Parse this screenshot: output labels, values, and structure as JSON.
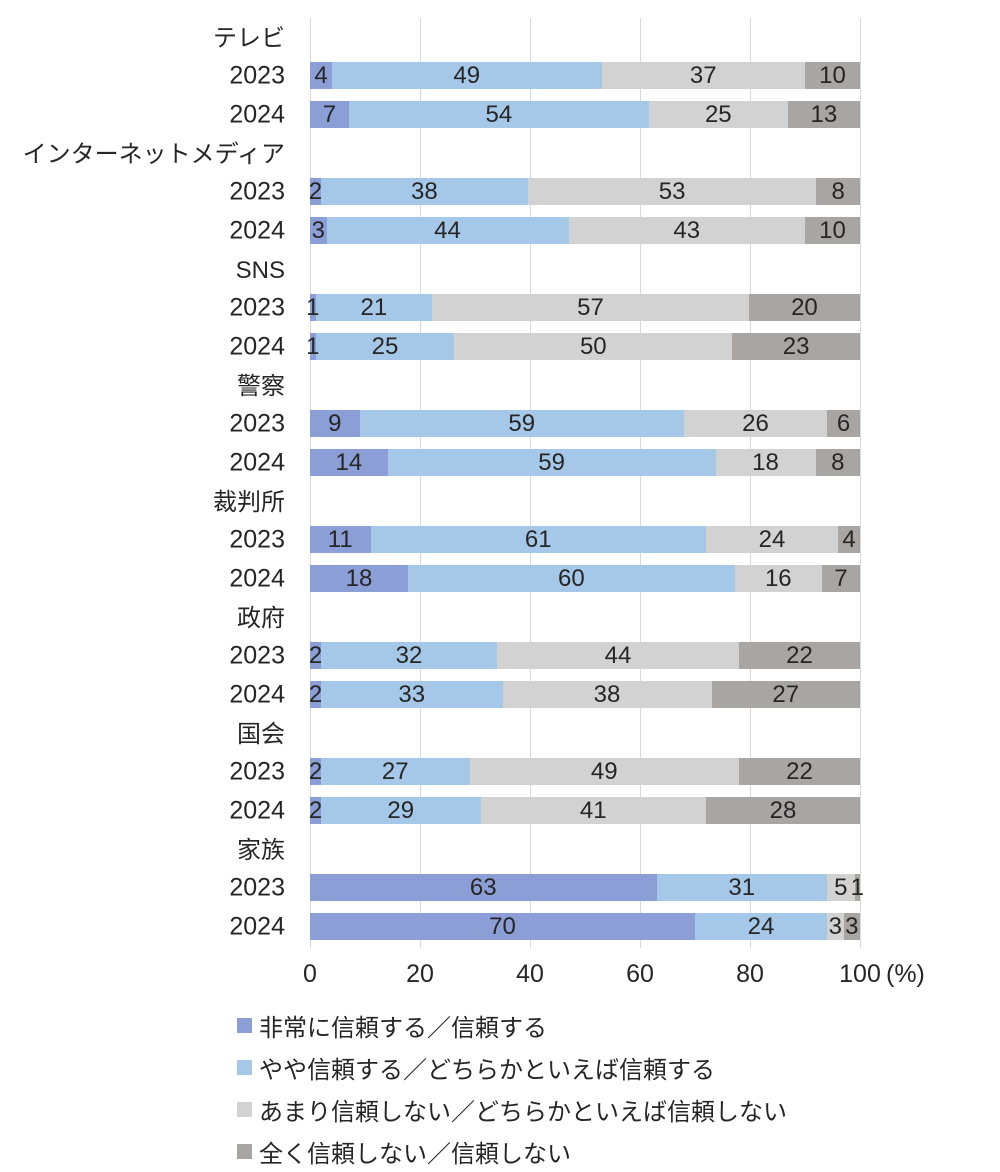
{
  "chart_data": {
    "type": "bar",
    "subtype": "100-percent-stacked-horizontal",
    "unit": "(%)",
    "x_ticks": [
      0,
      20,
      40,
      60,
      80,
      100
    ],
    "xlim": [
      0,
      100
    ],
    "grid": "vertical-lines",
    "legend_position": "bottom-left",
    "series_names": [
      "非常に信頼する／信頼する",
      "やや信頼する／どちらかといえば信頼する",
      "あまり信頼しない／どちらかといえば信頼しない",
      "全く信頼しない／信頼しない"
    ],
    "series_colors": [
      "#8b9fd6",
      "#a5c8e9",
      "#d2d2d2",
      "#a9a5a3"
    ],
    "groups": [
      {
        "label": "テレビ",
        "rows": [
          {
            "year": "2023",
            "values": [
              4,
              49,
              37,
              10
            ]
          },
          {
            "year": "2024",
            "values": [
              7,
              54,
              25,
              13
            ]
          }
        ]
      },
      {
        "label": "インターネットメディア",
        "rows": [
          {
            "year": "2023",
            "values": [
              2,
              38,
              53,
              8
            ]
          },
          {
            "year": "2024",
            "values": [
              3,
              44,
              43,
              10
            ]
          }
        ]
      },
      {
        "label": "SNS",
        "rows": [
          {
            "year": "2023",
            "values": [
              1,
              21,
              57,
              20
            ]
          },
          {
            "year": "2024",
            "values": [
              1,
              25,
              50,
              23
            ]
          }
        ]
      },
      {
        "label": "警察",
        "rows": [
          {
            "year": "2023",
            "values": [
              9,
              59,
              26,
              6
            ]
          },
          {
            "year": "2024",
            "values": [
              14,
              59,
              18,
              8
            ]
          }
        ]
      },
      {
        "label": "裁判所",
        "rows": [
          {
            "year": "2023",
            "values": [
              11,
              61,
              24,
              4
            ]
          },
          {
            "year": "2024",
            "values": [
              18,
              60,
              16,
              7
            ]
          }
        ]
      },
      {
        "label": "政府",
        "rows": [
          {
            "year": "2023",
            "values": [
              2,
              32,
              44,
              22
            ]
          },
          {
            "year": "2024",
            "values": [
              2,
              33,
              38,
              27
            ]
          }
        ]
      },
      {
        "label": "国会",
        "rows": [
          {
            "year": "2023",
            "values": [
              2,
              27,
              49,
              22
            ]
          },
          {
            "year": "2024",
            "values": [
              2,
              29,
              41,
              28
            ]
          }
        ]
      },
      {
        "label": "家族",
        "rows": [
          {
            "year": "2023",
            "values": [
              63,
              31,
              5,
              1
            ]
          },
          {
            "year": "2024",
            "values": [
              70,
              24,
              3,
              3
            ]
          }
        ]
      }
    ],
    "legend": [
      {
        "label": "非常に信頼する／信頼する",
        "color": "#8b9fd6"
      },
      {
        "label": "やや信頼する／どちらかといえば信頼する",
        "color": "#a5c8e9"
      },
      {
        "label": "あまり信頼しない／どちらかといえば信頼しない",
        "color": "#d2d2d2"
      },
      {
        "label": "全く信頼しない／信頼しない",
        "color": "#a9a5a3"
      }
    ],
    "colors": {
      "gridline": "#d9d9d9",
      "text": "#262626",
      "background": "#ffffff"
    }
  }
}
